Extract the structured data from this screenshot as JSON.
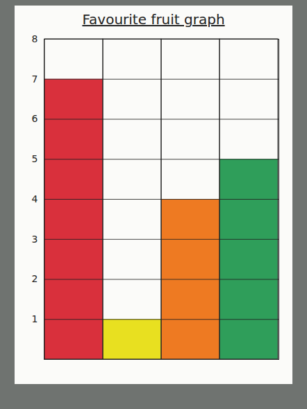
{
  "chart_data": {
    "type": "bar",
    "title": "Favourite fruit graph",
    "categories": [
      null,
      null,
      null,
      null
    ],
    "values": [
      7,
      1,
      4,
      5
    ],
    "colors": [
      "#d9303c",
      "#e8e020",
      "#ee7a22",
      "#2f9e5a"
    ],
    "ylim": [
      0,
      8
    ],
    "yticks": [
      1,
      2,
      3,
      4,
      5,
      6,
      7,
      8
    ],
    "grid": true
  }
}
